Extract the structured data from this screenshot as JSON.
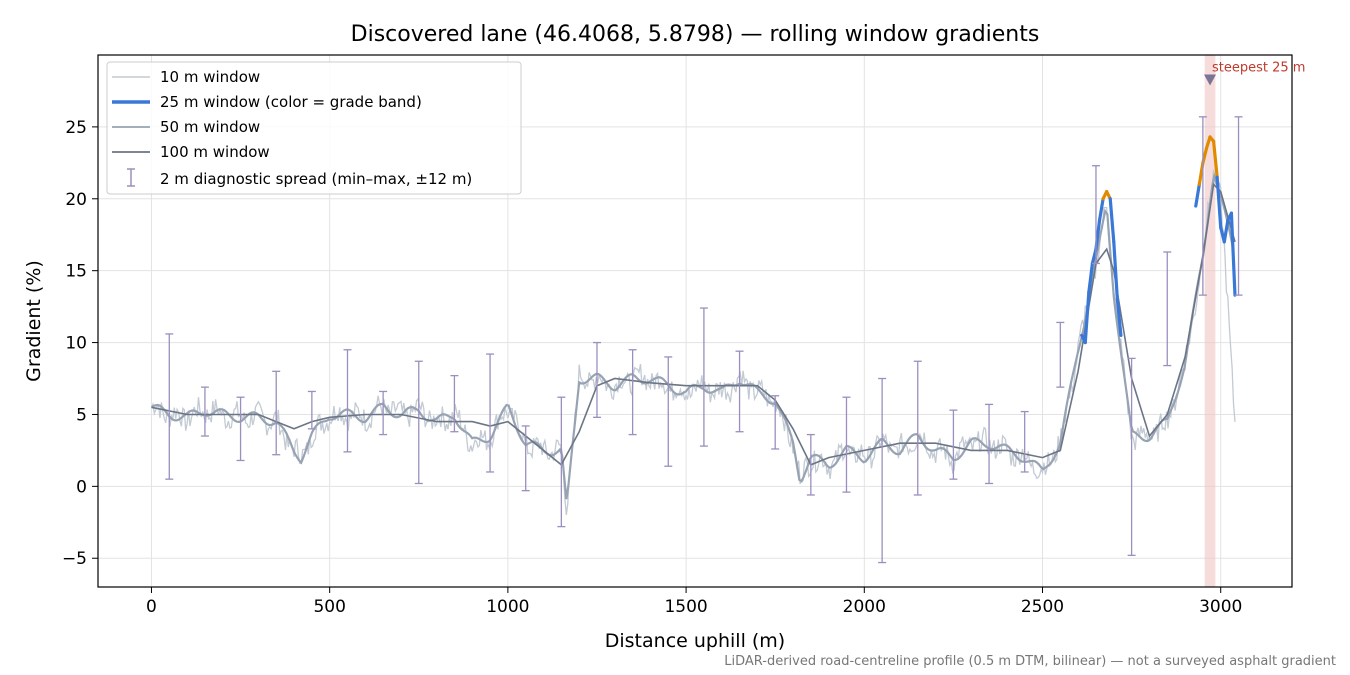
{
  "chart_data": {
    "type": "line",
    "title": "Discovered lane (46.4068, 5.8798) — rolling window gradients",
    "xlabel": "Distance uphill (m)",
    "ylabel": "Gradient (%)",
    "xlim": [
      -150,
      3200
    ],
    "ylim": [
      -7,
      30
    ],
    "xticks": [
      0,
      500,
      1000,
      1500,
      2000,
      2500,
      3000
    ],
    "xtick_labels": [
      "0",
      "500",
      "1000",
      "1500",
      "2000",
      "2500",
      "3000"
    ],
    "yticks": [
      -5,
      0,
      5,
      10,
      15,
      20,
      25
    ],
    "ytick_labels": [
      "−5",
      "0",
      "5",
      "10",
      "15",
      "20",
      "25"
    ],
    "grid": true,
    "legend_position": "top-left",
    "colors": {
      "w10": "#c3cad3",
      "w25": "#3a78d8",
      "w25_high": "#e08a00",
      "w50": "#97a3b3",
      "w100": "#6b7585",
      "errorbar": "#9a8fbe",
      "highlight": "#f2c4c4",
      "annotation": "#c0392b",
      "marker": "#7b7494",
      "grid": "#e3e3e3"
    },
    "annotation": {
      "text": "steepest 25 m",
      "x": 2970,
      "y": 28.3,
      "band": [
        2955,
        2985
      ]
    },
    "footnote": "LiDAR-derived road-centreline profile (0.5 m DTM, bilinear) — not a surveyed asphalt gradient",
    "series": [
      {
        "name": "10 m window",
        "role": "w10"
      },
      {
        "name": "25 m window (color = grade band)",
        "role": "w25",
        "x": [
          2610,
          2620,
          2630,
          2640,
          2650,
          2660,
          2670,
          2680,
          2690,
          2700,
          2710,
          2720,
          2930,
          2940,
          2950,
          2960,
          2970,
          2980,
          2990,
          3000,
          3010,
          3020,
          3030,
          3040
        ],
        "y": [
          10.5,
          10.0,
          13.5,
          15.5,
          16.5,
          18.5,
          20.0,
          20.5,
          20.0,
          17.0,
          13.0,
          10.5,
          19.5,
          21.0,
          22.5,
          23.5,
          24.3,
          24.0,
          21.5,
          18.0,
          17.0,
          18.5,
          19.0,
          13.3
        ],
        "high_threshold": 20.0
      },
      {
        "name": "50 m window",
        "role": "w50",
        "x": [
          0,
          50,
          100,
          150,
          200,
          250,
          300,
          350,
          400,
          420,
          450,
          500,
          550,
          600,
          650,
          700,
          750,
          800,
          850,
          900,
          950,
          1000,
          1050,
          1100,
          1150,
          1165,
          1200,
          1250,
          1300,
          1350,
          1400,
          1450,
          1500,
          1550,
          1600,
          1650,
          1700,
          1750,
          1800,
          1820,
          1850,
          1900,
          1950,
          2000,
          2050,
          2100,
          2150,
          2200,
          2250,
          2300,
          2350,
          2400,
          2450,
          2500,
          2550,
          2600,
          2650,
          2680,
          2700,
          2750,
          2800,
          2850,
          2900,
          2950,
          2980,
          3000,
          3040
        ],
        "y": [
          5.5,
          5.0,
          4.8,
          5.3,
          5.0,
          4.8,
          4.8,
          4.5,
          2.5,
          2.0,
          3.5,
          5.0,
          5.0,
          4.8,
          5.5,
          5.0,
          5.3,
          4.5,
          5.0,
          3.0,
          3.5,
          5.5,
          3.0,
          2.5,
          2.5,
          -1.5,
          7.5,
          7.5,
          7.0,
          7.5,
          7.5,
          7.0,
          6.5,
          7.0,
          6.5,
          7.5,
          6.5,
          6.0,
          3.0,
          0.5,
          2.0,
          1.5,
          2.5,
          2.0,
          3.0,
          2.5,
          3.5,
          2.5,
          2.0,
          3.0,
          3.0,
          2.5,
          2.0,
          1.0,
          3.0,
          9.5,
          15.5,
          19.5,
          13.5,
          3.5,
          3.5,
          4.5,
          8.5,
          16.0,
          22.0,
          20.0,
          16.0
        ]
      },
      {
        "name": "100 m window",
        "role": "w100",
        "x": [
          0,
          100,
          200,
          300,
          400,
          450,
          500,
          600,
          700,
          800,
          900,
          950,
          1000,
          1050,
          1100,
          1150,
          1200,
          1250,
          1300,
          1400,
          1500,
          1600,
          1700,
          1750,
          1800,
          1850,
          1900,
          2000,
          2100,
          2200,
          2300,
          2400,
          2500,
          2550,
          2600,
          2650,
          2680,
          2700,
          2750,
          2800,
          2850,
          2900,
          2950,
          2980,
          3000,
          3040
        ],
        "y": [
          5.5,
          5.0,
          5.0,
          5.0,
          4.0,
          4.5,
          4.8,
          5.0,
          5.0,
          4.5,
          4.5,
          4.2,
          4.5,
          3.5,
          2.5,
          1.5,
          3.8,
          7.0,
          7.5,
          7.2,
          7.0,
          7.0,
          7.0,
          6.0,
          4.0,
          1.5,
          2.0,
          2.5,
          3.0,
          3.0,
          2.5,
          2.5,
          2.0,
          2.5,
          8.0,
          15.5,
          16.5,
          15.0,
          7.5,
          3.5,
          5.0,
          9.0,
          16.0,
          21.0,
          20.5,
          17.0
        ]
      },
      {
        "name": "2 m diagnostic spread (min–max, ±12 m)",
        "role": "errorbar",
        "x": [
          50,
          150,
          250,
          350,
          450,
          550,
          650,
          750,
          850,
          950,
          1050,
          1150,
          1250,
          1350,
          1450,
          1550,
          1650,
          1750,
          1850,
          1950,
          2050,
          2150,
          2250,
          2350,
          2450,
          2550,
          2650,
          2750,
          2850,
          2950,
          3050
        ],
        "lo": [
          0.5,
          3.5,
          1.8,
          2.2,
          4.0,
          2.4,
          3.6,
          0.2,
          3.8,
          1.0,
          -0.3,
          -2.8,
          4.8,
          3.6,
          1.4,
          2.8,
          3.8,
          2.6,
          -0.6,
          -0.4,
          -5.3,
          -0.6,
          0.5,
          0.2,
          1.0,
          6.9,
          15.5,
          -4.8,
          8.4,
          13.3,
          13.3
        ],
        "hi": [
          10.6,
          6.9,
          6.2,
          8.0,
          6.6,
          9.5,
          6.6,
          8.7,
          7.7,
          9.2,
          4.2,
          6.2,
          10.0,
          9.5,
          9.0,
          12.4,
          9.4,
          6.3,
          3.6,
          6.2,
          7.5,
          8.7,
          5.3,
          5.7,
          5.2,
          11.4,
          22.3,
          8.9,
          16.3,
          25.7,
          25.7
        ]
      }
    ]
  }
}
